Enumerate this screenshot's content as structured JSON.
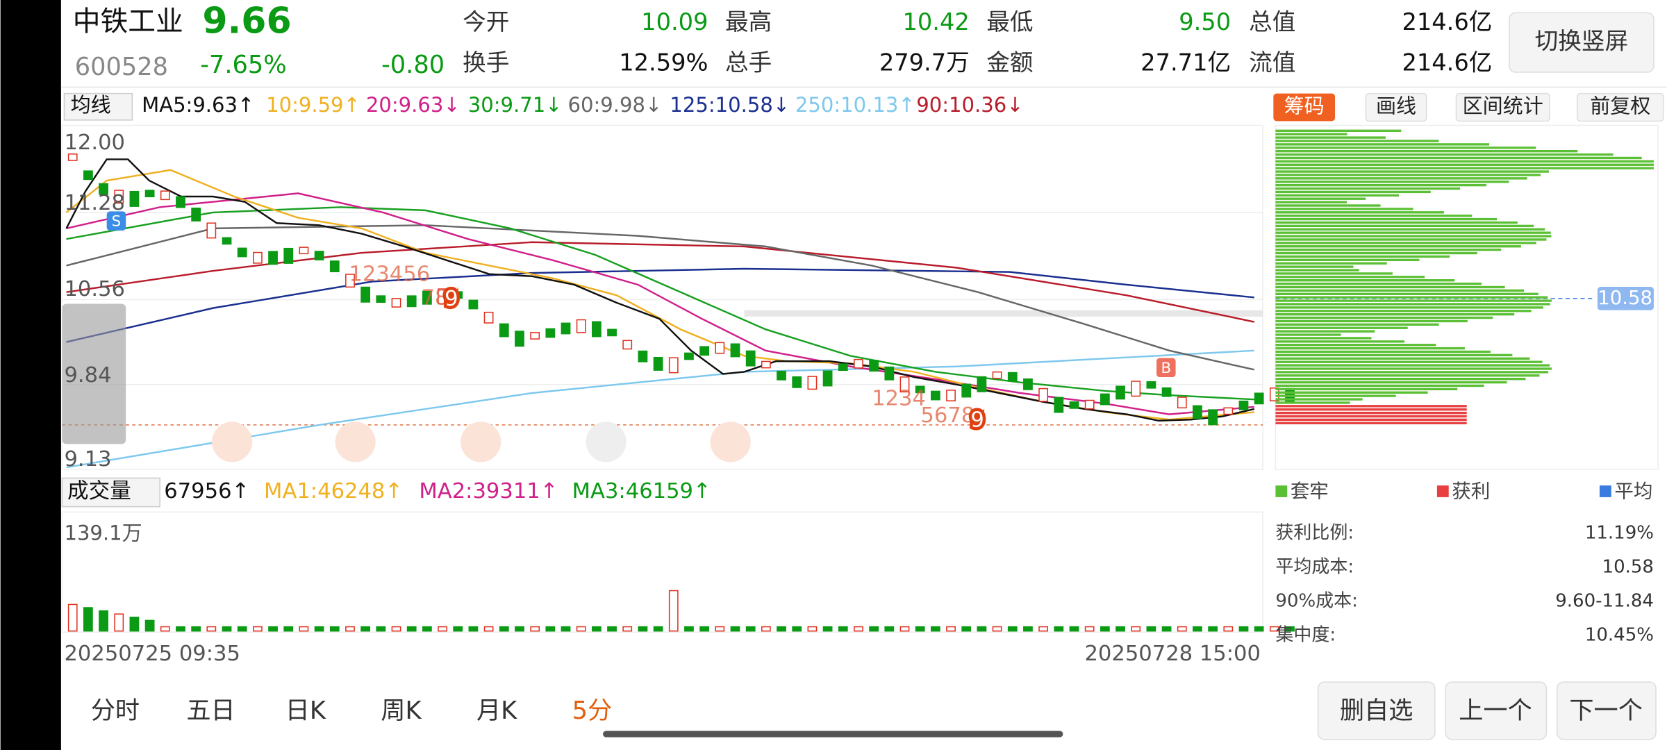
{
  "header": {
    "name": "中铁工业",
    "price": "9.66",
    "code": "600528",
    "change_pct": "-7.65%",
    "change": "-0.80"
  },
  "quote": [
    {
      "label": "今开",
      "value": "10.09"
    },
    {
      "label": "最高",
      "value": "10.42"
    },
    {
      "label": "最低",
      "value": "9.50"
    },
    {
      "label": "总值",
      "value": "214.6亿"
    },
    {
      "label": "换手",
      "value": "12.59%"
    },
    {
      "label": "总手",
      "value": "279.7万"
    },
    {
      "label": "金额",
      "value": "27.71亿"
    },
    {
      "label": "流值",
      "value": "214.6亿"
    }
  ],
  "orient_button": "切换竖屏",
  "ma_toolbar": {
    "selector": "均线",
    "items": [
      "MA5:9.63↑",
      "10:9.59↑",
      "20:9.63↓",
      "30:9.71↓",
      "60:9.98↓",
      "125:10.58↓",
      "250:10.13↑",
      "90:10.36↓"
    ]
  },
  "tools": [
    "筹码",
    "画线",
    "区间统计",
    "前复权"
  ],
  "price_axis": [
    "12.00",
    "11.28",
    "10.56",
    "9.84",
    "9.13"
  ],
  "signals": {
    "sell": "S",
    "buy": "B",
    "seq": [
      "123456",
      "78",
      "9",
      "1234",
      "5678",
      "9"
    ]
  },
  "chip_price": "10.58",
  "volume_toolbar": {
    "selector": "成交量",
    "items": [
      "67956↑",
      "MA1:46248↑",
      "MA2:39311↑",
      "MA3:46159↑"
    ]
  },
  "volume_axis": "139.1万",
  "dates": [
    "20250725 09:35",
    "20250728 15:00"
  ],
  "chip_legend": [
    "套牢",
    "获利",
    "平均"
  ],
  "chip_stats": [
    {
      "label": "获利比例:",
      "value": "11.19%"
    },
    {
      "label": "平均成本:",
      "value": "10.58"
    },
    {
      "label": "90%成本:",
      "value": "9.60-11.84"
    },
    {
      "label": "集中度:",
      "value": "10.45%"
    }
  ],
  "tabs": [
    "分时",
    "五日",
    "日K",
    "周K",
    "月K",
    "5分"
  ],
  "actions": [
    "删自选",
    "上一个",
    "下一个"
  ]
}
